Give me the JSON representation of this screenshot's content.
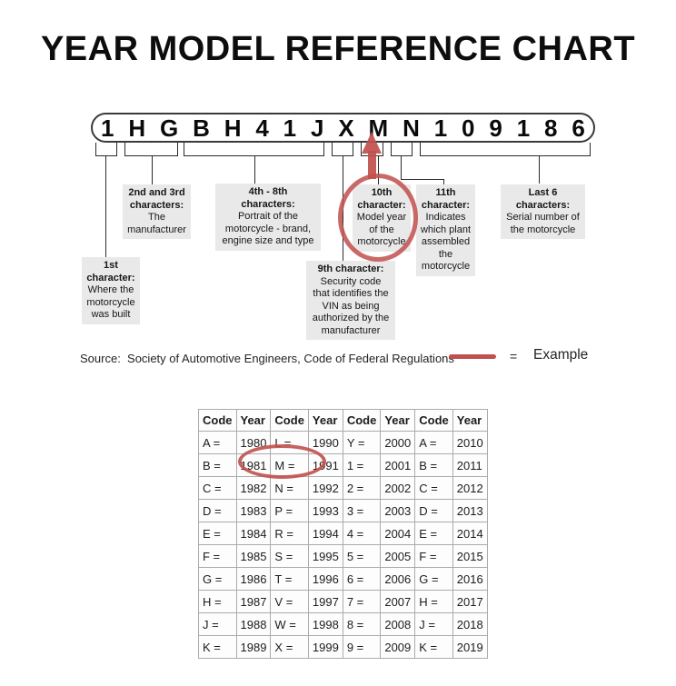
{
  "title": "YEAR MODEL REFERENCE CHART",
  "vin": {
    "characters": [
      "1",
      "H",
      "G",
      "B",
      "H",
      "4",
      "1",
      "J",
      "X",
      "M",
      "N",
      "1",
      "0",
      "9",
      "1",
      "8",
      "6"
    ]
  },
  "callouts": [
    {
      "id": "first",
      "heading": "1st\ncharacter:",
      "body": "Where the\nmotorcycle\nwas built"
    },
    {
      "id": "second-third",
      "heading": "2nd and 3rd\ncharacters:",
      "body": "The\nmanufacturer"
    },
    {
      "id": "fourth-eighth",
      "heading": "4th - 8th\ncharacters:",
      "body": "Portrait of the\nmotorcycle - brand,\nengine size and type"
    },
    {
      "id": "ninth",
      "heading": "9th character:",
      "body": "Security code\nthat identifies the\nVIN as being\nauthorized by the\nmanufacturer"
    },
    {
      "id": "tenth",
      "heading": "10th\ncharacter:",
      "body": "Model year\nof the\nmotorcycle"
    },
    {
      "id": "eleventh",
      "heading": "11th\ncharacter:",
      "body": "Indicates\nwhich plant\nassembled\nthe\nmotorcycle"
    },
    {
      "id": "last-six",
      "heading": "Last 6\ncharacters:",
      "body": "Serial number of\nthe motorcycle"
    }
  ],
  "source_line": "Source:  Society of Automotive Engineers, Code of Federal Regulations",
  "legend": {
    "equals": "=",
    "label": "Example"
  },
  "table": {
    "headers": [
      "Code",
      "Year",
      "Code",
      "Year",
      "Code",
      "Year",
      "Code",
      "Year"
    ],
    "rows": [
      [
        "A =",
        "1980",
        "L =",
        "1990",
        "Y =",
        "2000",
        "A =",
        "2010"
      ],
      [
        "B =",
        "1981",
        "M =",
        "1991",
        "1 =",
        "2001",
        "B =",
        "2011"
      ],
      [
        "C =",
        "1982",
        "N =",
        "1992",
        "2 =",
        "2002",
        "C =",
        "2012"
      ],
      [
        "D =",
        "1983",
        "P =",
        "1993",
        "3 =",
        "2003",
        "D =",
        "2013"
      ],
      [
        "E =",
        "1984",
        "R =",
        "1994",
        "4 =",
        "2004",
        "E =",
        "2014"
      ],
      [
        "F =",
        "1985",
        "S =",
        "1995",
        "5 =",
        "2005",
        "F =",
        "2015"
      ],
      [
        "G =",
        "1986",
        "T =",
        "1996",
        "6 =",
        "2006",
        "G =",
        "2016"
      ],
      [
        "H =",
        "1987",
        "V =",
        "1997",
        "7 =",
        "2007",
        "H =",
        "2017"
      ],
      [
        "J =",
        "1988",
        "W =",
        "1998",
        "8 =",
        "2008",
        "J =",
        "2018"
      ],
      [
        "K =",
        "1989",
        "X =",
        "1999",
        "9 =",
        "2009",
        "K =",
        "2019"
      ]
    ],
    "highlighted_cell": "M = 1991"
  },
  "colors": {
    "accent_red": "#c0504d",
    "callout_background": "#e9e9e9",
    "line_black": "#2b2b2b",
    "table_border": "#ababab"
  }
}
